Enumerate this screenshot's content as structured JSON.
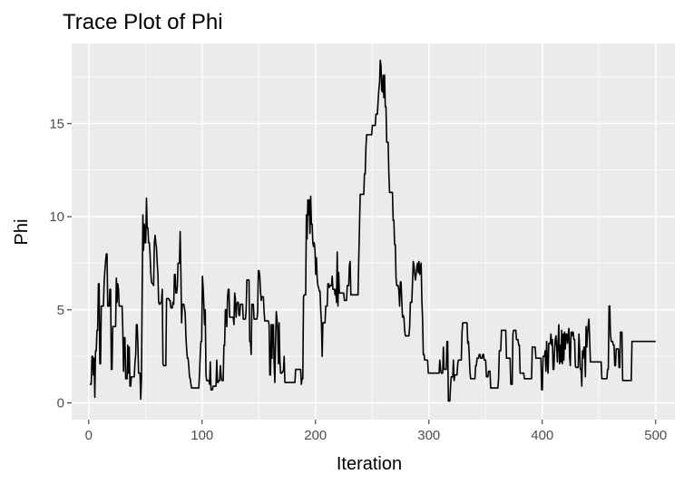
{
  "chart_data": {
    "type": "line",
    "title": "Trace Plot of Phi",
    "xlabel": "Iteration",
    "ylabel": "Phi",
    "xlim": [
      -15,
      517
    ],
    "ylim": [
      -0.9,
      19.3
    ],
    "xticks": [
      0,
      100,
      200,
      300,
      400,
      500
    ],
    "yticks": [
      0,
      5,
      10,
      15
    ],
    "grid": true,
    "background": "#ebebeb",
    "line_color": "#000000",
    "series": [
      {
        "values": [
          1.0,
          1.0,
          1.0,
          2.5,
          2.5,
          1.5,
          2.4,
          0.3,
          2.8,
          2.8,
          3.9,
          3.9,
          6.4,
          6.4,
          2.1,
          2.1,
          5.2,
          5.2,
          5.2,
          5.2,
          6.5,
          7.1,
          7.6,
          8.0,
          8.0,
          5.2,
          5.2,
          5.2,
          6.1,
          6.1,
          1.8,
          1.8,
          4.1,
          4.1,
          4.1,
          4.1,
          4.1,
          6.7,
          5.4,
          6.4,
          6.1,
          5.2,
          5.2,
          5.2,
          5.2,
          5.2,
          3.9,
          1.7,
          3.5,
          3.5,
          1.3,
          1.3,
          1.3,
          3.1,
          1.6,
          3.0,
          0.9,
          0.9,
          1.4,
          1.4,
          1.4,
          1.4,
          1.4,
          2.2,
          2.6,
          4.2,
          4.2,
          3.2,
          1.6,
          1.6,
          1.6,
          0.2,
          1.2,
          5.9,
          10.1,
          8.2,
          9.6,
          8.6,
          8.6,
          11.0,
          9.4,
          9.4,
          8.6,
          8.6,
          8.0,
          7.0,
          6.5,
          6.4,
          6.4,
          6.3,
          8.6,
          9.0,
          8.6,
          8.3,
          7.5,
          6.9,
          5.4,
          5.3,
          5.3,
          5.4,
          5.4,
          6.1,
          2.1,
          2.0,
          2.0,
          2.0,
          2.0,
          5.6,
          5.6,
          5.6,
          5.6,
          5.5,
          5.5,
          5.1,
          5.1,
          5.1,
          5.4,
          5.3,
          6.9,
          6.9,
          5.9,
          5.9,
          6.2,
          7.5,
          7.5,
          7.5,
          9.2,
          7.0,
          4.3,
          5.3,
          5.3,
          5.3,
          5.1,
          4.8,
          3.6,
          2.9,
          2.4,
          2.4,
          2.0,
          1.4,
          1.3,
          1.0,
          0.8,
          0.8,
          0.8,
          0.8,
          0.8,
          0.8,
          0.8,
          0.8,
          0.8,
          0.8,
          0.8,
          1.6,
          2.6,
          3.3,
          3.3,
          6.8,
          6.2,
          5.3,
          4.2,
          5.0,
          1.5,
          1.2,
          1.2,
          1.2,
          1.2,
          1.0,
          2.2,
          0.7,
          0.7,
          0.7,
          0.9,
          0.9,
          0.9,
          0.9,
          0.9,
          2.3,
          1.1,
          1.1,
          1.2,
          1.2,
          2.0,
          1.5,
          1.2,
          1.2,
          1.2,
          3.1,
          3.1,
          5.0,
          5.0,
          4.1,
          5.6,
          6.1,
          6.1,
          4.6,
          4.6,
          4.6,
          4.6,
          4.6,
          4.6,
          4.2,
          5.9,
          5.6,
          4.6,
          5.3,
          5.4,
          5.4,
          4.7,
          4.7,
          5.3,
          5.3,
          5.3,
          5.3,
          4.5,
          4.5,
          4.5,
          4.5,
          5.0,
          6.6,
          6.6,
          6.6,
          6.6,
          3.3,
          3.3,
          2.6,
          5.3,
          5.3,
          5.3,
          4.5,
          4.5,
          4.5,
          4.5,
          4.5,
          4.8,
          7.1,
          7.1,
          6.8,
          6.0,
          5.5,
          5.7,
          5.7,
          5.7,
          4.9,
          4.4,
          4.4,
          4.4,
          4.4,
          4.4,
          4.4,
          4.2,
          1.5,
          1.5,
          4.2,
          2.4,
          4.2,
          4.2,
          2.1,
          1.1,
          3.2,
          4.9,
          4.5,
          3.9,
          2.1,
          4.3,
          2.3,
          1.6,
          1.6,
          1.6,
          1.7,
          1.7,
          2.5,
          1.1,
          1.1,
          1.1,
          1.1,
          1.1,
          1.1,
          1.1,
          1.1,
          1.1,
          1.1,
          1.1,
          1.1,
          1.1,
          1.1,
          1.1,
          1.8,
          1.8,
          1.8,
          1.8,
          1.8,
          1.8,
          1.8,
          1.8,
          1.0,
          1.3,
          1.3,
          5.7,
          5.8,
          5.8,
          5.8,
          10.1,
          8.8,
          10.9,
          10.1,
          10.9,
          9.1,
          11.1,
          9.6,
          9.6,
          8.6,
          8.4,
          8.6,
          8.2,
          6.9,
          7.8,
          6.7,
          6.3,
          6.2,
          6.0,
          6.0,
          5.0,
          4.3,
          2.5,
          4.3,
          4.3,
          4.3,
          4.3,
          5.2,
          5.2,
          5.2,
          6.4,
          6.4,
          6.2,
          6.3,
          6.3,
          6.3,
          6.8,
          6.1,
          6.1,
          6.1,
          5.8,
          6.1,
          5.4,
          8.1,
          5.2,
          7.0,
          5.9,
          5.9,
          5.9,
          5.9,
          5.9,
          5.9,
          5.9,
          5.5,
          5.5,
          5.5,
          5.5,
          6.3,
          6.3,
          6.3,
          7.4,
          7.6,
          5.8,
          5.8,
          5.8,
          5.8,
          5.8,
          5.8,
          5.8,
          5.8,
          5.8,
          5.8,
          5.8,
          7.7,
          9.4,
          11.2,
          11.2,
          11.2,
          11.2,
          11.2,
          11.2,
          12.3,
          12.3,
          13.7,
          14.4,
          14.4,
          14.4,
          14.4,
          14.4,
          14.4,
          14.4,
          14.4,
          14.9,
          14.9,
          14.9,
          14.9,
          14.9,
          15.5,
          15.5,
          15.5,
          16.2,
          16.8,
          17.2,
          18.4,
          18.1,
          16.8,
          16.7,
          17.6,
          16.4,
          17.6,
          15.9,
          15.9,
          14.0,
          14.0,
          14.0,
          12.3,
          11.3,
          11.3,
          11.3,
          11.3,
          11.3,
          9.8,
          9.8,
          8.5,
          8.5,
          6.7,
          6.3,
          6.3,
          6.3,
          6.0,
          5.2,
          6.5,
          6.5,
          5.5,
          4.6,
          4.7,
          4.6,
          3.9,
          3.6,
          3.6,
          3.6,
          3.6,
          3.6,
          3.6,
          4.1,
          5.4,
          5.4,
          5.4,
          6.5,
          7.6,
          7.4,
          6.9,
          6.6,
          6.9,
          7.3,
          7.5,
          7.0,
          7.6,
          6.9,
          7.3,
          7.5,
          5.5,
          4.5,
          2.6,
          2.6,
          2.3,
          2.3,
          2.3,
          2.3,
          2.3,
          1.6,
          1.6,
          1.6,
          1.6,
          1.6,
          1.6,
          1.6,
          1.6,
          1.6,
          1.6,
          1.6,
          1.6,
          1.6,
          1.6,
          1.6,
          1.6,
          2.3,
          1.8,
          1.6,
          1.6,
          1.6,
          3.0,
          1.8,
          1.8,
          1.8,
          1.8,
          3.3,
          3.3,
          0.1,
          0.1,
          0.1,
          0.9,
          1.4,
          1.4,
          1.4,
          2.3,
          1.2,
          1.5,
          1.5,
          1.5,
          1.5,
          2.1,
          2.3,
          2.3,
          2.3,
          2.3,
          2.3,
          3.8,
          4.3,
          4.3,
          4.3,
          4.3,
          4.3,
          4.3,
          4.3,
          3.2,
          3.3,
          2.6,
          1.7,
          1.3,
          1.3,
          1.3,
          1.3,
          1.3,
          1.3,
          1.3,
          2.0,
          2.0,
          2.4,
          2.4,
          2.4,
          2.6,
          2.6,
          2.4,
          2.4,
          2.4,
          2.6,
          2.6,
          2.3,
          2.3,
          2.3,
          1.4,
          1.4,
          1.4,
          1.7,
          1.7,
          1.7,
          0.8,
          0.8,
          0.8,
          0.8,
          0.8,
          0.8,
          0.8,
          0.8,
          0.8,
          0.8,
          0.8,
          1.3,
          2.8,
          2.8,
          2.8,
          3.9,
          3.9,
          3.9,
          3.9,
          3.9,
          3.9,
          3.9,
          2.4,
          2.4,
          2.4,
          2.4,
          2.4,
          2.4,
          1.0,
          1.0,
          1.0,
          3.7,
          3.9,
          3.9,
          3.9,
          3.9,
          3.4,
          3.4,
          3.4,
          3.1,
          3.1,
          1.6,
          1.6,
          1.6,
          1.6,
          1.6,
          1.6,
          1.3,
          1.3,
          1.3,
          1.3,
          1.3,
          1.3,
          1.3,
          1.3,
          1.3,
          1.3,
          1.3,
          3.0,
          3.0,
          3.0,
          3.0,
          3.0,
          2.4,
          2.4,
          2.4,
          2.4,
          2.4,
          2.4,
          2.4,
          2.4,
          0.7,
          0.7,
          2.5,
          2.5,
          2.5,
          2.8,
          1.7,
          3.3,
          2.2,
          1.6,
          3.2,
          3.2,
          3.2,
          3.7,
          3.1,
          3.4,
          1.8,
          1.8,
          2.8,
          3.4,
          3.6,
          3.0,
          2.2,
          3.3,
          4.2,
          2.1,
          3.1,
          2.2,
          3.9,
          2.1,
          3.7,
          2.3,
          3.8,
          2.9,
          3.7,
          3.7,
          3.2,
          3.6,
          4.0,
          2.5,
          2.0,
          3.8,
          3.6,
          3.8,
          3.8,
          3.4,
          3.4,
          2.0,
          1.9,
          1.9,
          1.9,
          1.9,
          3.7,
          2.9,
          1.8,
          1.8,
          0.9,
          2.8,
          2.4,
          3.0,
          3.0,
          1.4,
          4.1,
          3.0,
          3.7,
          4.2,
          4.5,
          3.4,
          2.2,
          2.2,
          2.2,
          2.2,
          2.2,
          2.2,
          2.2,
          2.2,
          2.2,
          2.2,
          2.2,
          2.2,
          2.2,
          2.2,
          2.2,
          2.2,
          1.3,
          1.3,
          1.3,
          1.3,
          1.3,
          1.3,
          1.3,
          1.3,
          1.8,
          1.8,
          5.2,
          5.2,
          3.7,
          3.3,
          3.3,
          3.3,
          3.1,
          3.1,
          2.0,
          2.0,
          2.9,
          2.9,
          2.9,
          2.9,
          1.9,
          1.9,
          3.8,
          3.8,
          3.8,
          1.2,
          1.2,
          1.2,
          1.2,
          1.2,
          1.2,
          1.2,
          1.2,
          1.2,
          1.2,
          1.2,
          1.2,
          1.2,
          3.3,
          3.3,
          3.3,
          3.3,
          3.3,
          3.3,
          3.3,
          3.3,
          3.3,
          3.3,
          3.3,
          3.3,
          3.3,
          3.3,
          3.3,
          3.3,
          3.3,
          3.3,
          3.3,
          3.3,
          3.3,
          3.3,
          3.3,
          3.3,
          3.3,
          3.3,
          3.3,
          3.3,
          3.3,
          3.3,
          3.3,
          3.3,
          3.3,
          3.3
        ]
      }
    ]
  }
}
